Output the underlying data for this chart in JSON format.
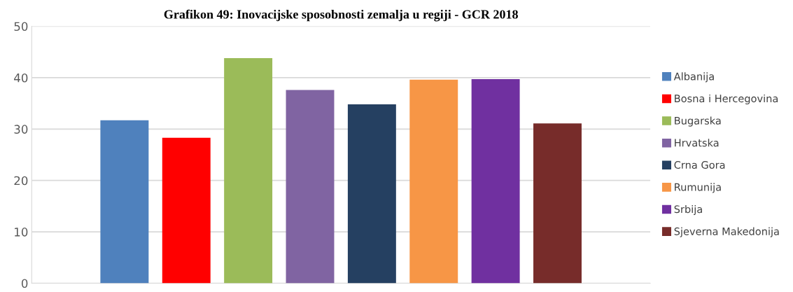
{
  "chart_data": {
    "type": "bar",
    "title": "Grafikon 49: Inovacijske sposobnosti zemalja u regiji - GCR 2018",
    "categories": [
      null
    ],
    "series": [
      {
        "name": "Albanija",
        "color": "#4f81bd",
        "values": [
          31.7
        ]
      },
      {
        "name": "Bosna i Hercegovina",
        "color": "#ff0000",
        "values": [
          28.3
        ]
      },
      {
        "name": "Bugarska",
        "color": "#9bbb59",
        "values": [
          43.8
        ]
      },
      {
        "name": "Hrvatska",
        "color": "#8064a2",
        "values": [
          37.6
        ]
      },
      {
        "name": "Crna Gora",
        "color": "#254061",
        "values": [
          34.8
        ]
      },
      {
        "name": "Rumunija",
        "color": "#f79646",
        "values": [
          39.6
        ]
      },
      {
        "name": "Srbija",
        "color": "#7030a0",
        "values": [
          39.7
        ]
      },
      {
        "name": "Sjeverna Makedonija",
        "color": "#772c2a",
        "values": [
          31.1
        ]
      }
    ],
    "ylim": [
      0,
      50
    ],
    "yticks": [
      0,
      10,
      20,
      30,
      40,
      50
    ],
    "grid": "y",
    "legend": "right"
  }
}
